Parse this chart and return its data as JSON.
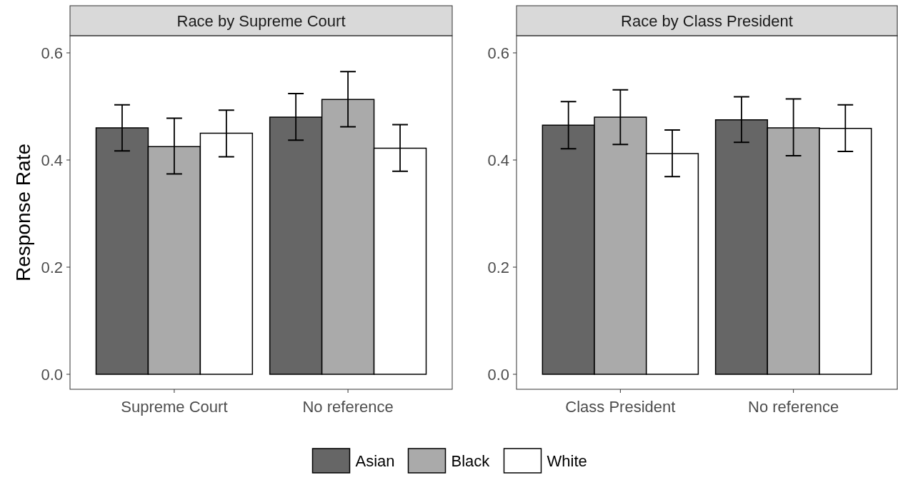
{
  "chart_data": [
    {
      "type": "bar",
      "title": "Race by Supreme Court",
      "ylabel": "Response Rate",
      "categories": [
        "Supreme Court",
        "No reference"
      ],
      "ylim": [
        -0.028,
        0.632
      ],
      "yticks": [
        {
          "value": 0,
          "label": "0.0"
        },
        {
          "value": 0.2,
          "label": "0.2"
        },
        {
          "value": 0.4,
          "label": "0.4"
        },
        {
          "value": 0.6,
          "label": "0.6"
        }
      ],
      "grid": false,
      "legend": "bottom",
      "series": [
        {
          "name": "Asian",
          "color": "#666666",
          "values": [
            0.46,
            0.48
          ],
          "errors": [
            [
              0.417,
              0.503
            ],
            [
              0.437,
              0.524
            ]
          ]
        },
        {
          "name": "Black",
          "color": "#aaaaaa",
          "values": [
            0.425,
            0.513
          ],
          "errors": [
            [
              0.374,
              0.478
            ],
            [
              0.462,
              0.565
            ]
          ]
        },
        {
          "name": "White",
          "color": "#ffffff",
          "values": [
            0.45,
            0.422
          ],
          "errors": [
            [
              0.406,
              0.493
            ],
            [
              0.379,
              0.466
            ]
          ]
        }
      ]
    },
    {
      "type": "bar",
      "title": "Race by Class President",
      "categories": [
        "Class President",
        "No reference"
      ],
      "ylim": [
        -0.028,
        0.632
      ],
      "yticks": [
        {
          "value": 0,
          "label": "0.0"
        },
        {
          "value": 0.2,
          "label": "0.2"
        },
        {
          "value": 0.4,
          "label": "0.4"
        },
        {
          "value": 0.6,
          "label": "0.6"
        }
      ],
      "grid": false,
      "series": [
        {
          "color": "#666666",
          "values": [
            0.465,
            0.475
          ],
          "errors": [
            [
              0.421,
              0.509
            ],
            [
              0.433,
              0.518
            ]
          ]
        },
        {
          "color": "#aaaaaa",
          "values": [
            0.48,
            0.46
          ],
          "errors": [
            [
              0.429,
              0.531
            ],
            [
              0.408,
              0.514
            ]
          ]
        },
        {
          "color": "#ffffff",
          "values": [
            0.412,
            0.459
          ],
          "errors": [
            [
              0.369,
              0.456
            ],
            [
              0.416,
              0.503
            ]
          ]
        }
      ]
    }
  ]
}
